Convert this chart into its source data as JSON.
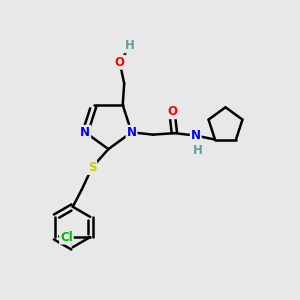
{
  "background_color": "#e8e8e8",
  "bond_color": "#000000",
  "bond_width": 1.8,
  "atom_colors": {
    "N": "#0000ff",
    "O": "#ff0000",
    "S": "#cccc00",
    "Cl": "#00bb00",
    "C": "#000000",
    "H": "#5f9ea0"
  },
  "font_size": 8.5,
  "fig_width": 3.0,
  "fig_height": 3.0
}
